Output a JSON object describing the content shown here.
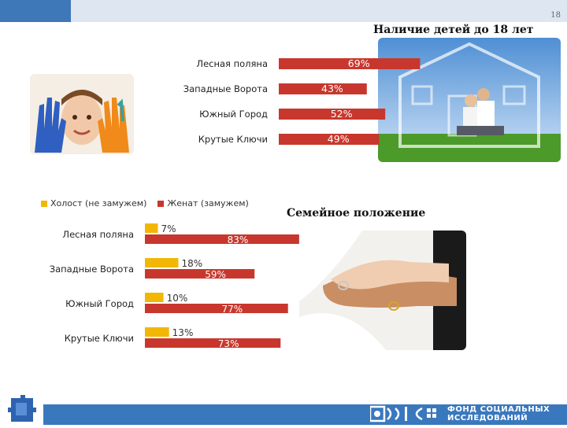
{
  "page_number": "18",
  "children_title": "Наличие детей до 18 лет",
  "family_title": "Семейное положение",
  "brand": {
    "line1": "ФОНД СОЦИАЛЬНЫХ",
    "line2": "ИССЛЕДОВАНИЙ"
  },
  "colors": {
    "red": "#c8372d",
    "yellow": "#f2b705",
    "blue": "#3a78be",
    "top_bar": "#dde6f1"
  },
  "chart_data": [
    {
      "type": "bar",
      "categories": [
        "Лесная поляна",
        "Западные Ворота",
        "Южный Город",
        "Крутые Ключи"
      ],
      "series": [
        {
          "values": [
            69,
            43,
            52,
            49
          ]
        }
      ],
      "value_suffix": "%"
    },
    {
      "type": "bar",
      "categories": [
        "Лесная поляна",
        "Западные Ворота",
        "Южный Город",
        "Крутые Ключи"
      ],
      "series": [
        {
          "name": "Холост (не замужем)",
          "values": [
            7,
            18,
            10,
            13
          ]
        },
        {
          "name": "Женат (замужем)",
          "values": [
            83,
            59,
            77,
            73
          ]
        }
      ],
      "value_suffix": "%",
      "legend": "top-left"
    }
  ]
}
